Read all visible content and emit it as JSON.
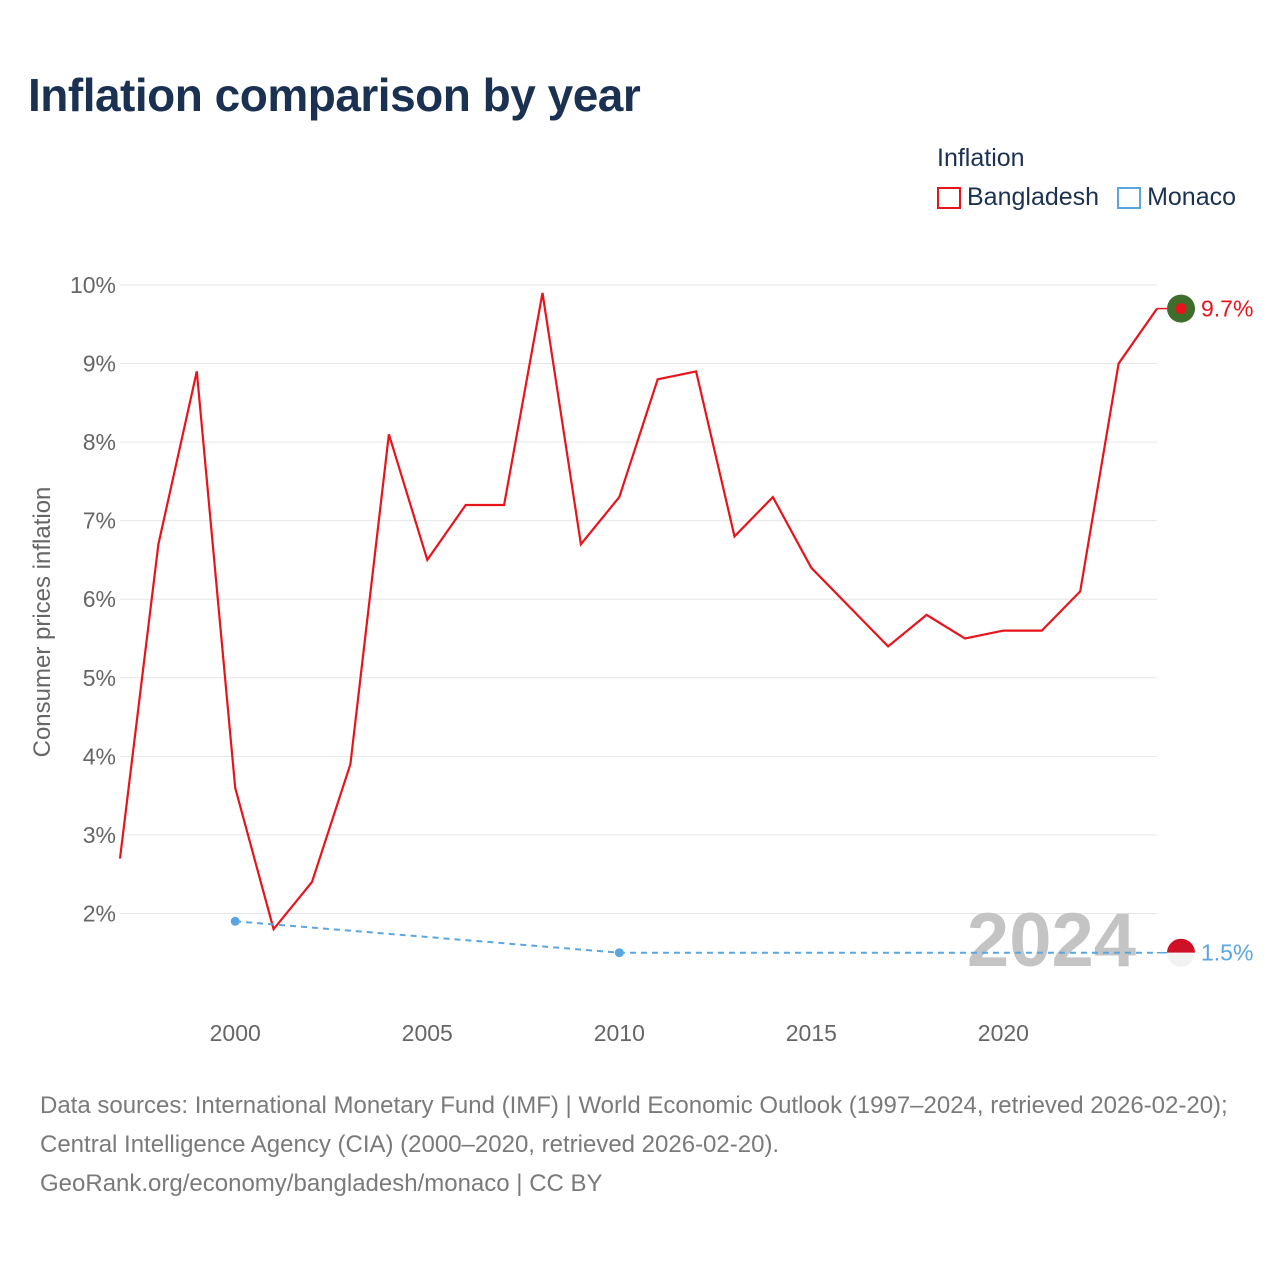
{
  "header": {
    "title": "Inflation comparison by year"
  },
  "legend": {
    "title": "Inflation",
    "items": [
      {
        "label": "Bangladesh",
        "color": "#e8141b"
      },
      {
        "label": "Monaco",
        "color": "#5aa6e0"
      }
    ]
  },
  "chart_data": {
    "type": "line",
    "title": "Inflation comparison by year",
    "xlabel": "",
    "ylabel": "Consumer prices inflation",
    "xlim": [
      1997,
      2024
    ],
    "ylim": [
      1,
      10
    ],
    "yticks": [
      2,
      3,
      4,
      5,
      6,
      7,
      8,
      9,
      10
    ],
    "xticks": [
      2000,
      2005,
      2010,
      2015,
      2020
    ],
    "grid": true,
    "legend_position": "top-right",
    "year_watermark": "2024",
    "series": [
      {
        "name": "Bangladesh",
        "color": "#e8141b",
        "style": "solid",
        "end_label": "9.7%",
        "x": [
          1997,
          1998,
          1999,
          2000,
          2001,
          2002,
          2003,
          2004,
          2005,
          2006,
          2007,
          2008,
          2009,
          2010,
          2011,
          2012,
          2013,
          2014,
          2015,
          2016,
          2017,
          2018,
          2019,
          2020,
          2021,
          2022,
          2023,
          2024
        ],
        "values": [
          2.7,
          6.7,
          8.9,
          3.6,
          1.8,
          2.4,
          3.9,
          8.1,
          6.5,
          7.2,
          7.2,
          9.9,
          6.7,
          7.3,
          8.8,
          8.9,
          6.8,
          7.3,
          6.4,
          5.9,
          5.4,
          5.8,
          5.5,
          5.6,
          5.6,
          6.1,
          9.0,
          9.7
        ]
      },
      {
        "name": "Monaco",
        "color": "#5aa6e0",
        "style": "dashed",
        "end_label": "1.5%",
        "x": [
          2000,
          2010,
          2024
        ],
        "values": [
          1.9,
          1.5,
          1.5
        ]
      }
    ]
  },
  "footer": {
    "source_line_1": "Data sources: International Monetary Fund (IMF) | World Economic Outlook (1997–2024, retrieved 2026-02-20); Central Intelligence Agency (CIA) (2000–2020, retrieved 2026-02-20).",
    "source_line_2": "GeoRank.org/economy/bangladesh/monaco | CC BY"
  }
}
